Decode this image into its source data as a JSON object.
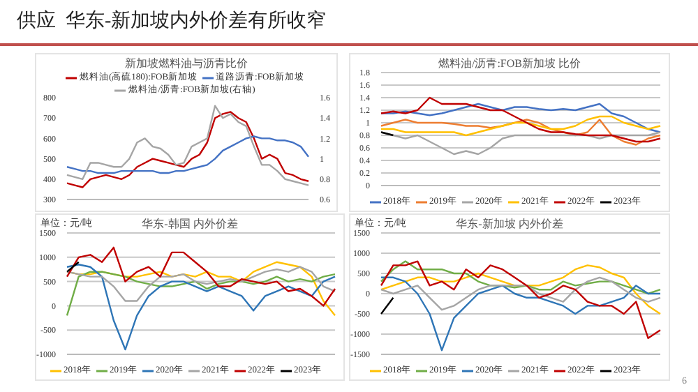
{
  "chart_data": [
    {
      "type": "line",
      "title": "新加坡燃料油与沥青比价",
      "annotations": [
        "供应  华东-新加坡内外价差有所收窄"
      ],
      "legend": "top",
      "categories": [
        null,
        null,
        null,
        null,
        null,
        null,
        null,
        null,
        null,
        null,
        null,
        null,
        null,
        null,
        null,
        null,
        null,
        null,
        null,
        null,
        null,
        null,
        null,
        null,
        null,
        null,
        null,
        null,
        null,
        null,
        null,
        null
      ],
      "ylim": [
        300,
        800
      ],
      "yticks": [
        300,
        400,
        500,
        600,
        700,
        800
      ],
      "y2lim": [
        0.6,
        1.6
      ],
      "y2ticks": [
        0.6,
        0.8,
        1.0,
        1.2,
        1.4,
        1.6
      ],
      "series": [
        {
          "name": "燃料油(高硫180):FOB新加坡",
          "color": "#c00000",
          "values": [
            380,
            370,
            360,
            400,
            410,
            420,
            410,
            400,
            420,
            460,
            480,
            500,
            490,
            480,
            470,
            460,
            500,
            520,
            580,
            700,
            720,
            730,
            700,
            680,
            600,
            500,
            520,
            500,
            430,
            420,
            400,
            390
          ]
        },
        {
          "name": "道路沥青:FOB新加坡",
          "color": "#4472c4",
          "values": [
            460,
            450,
            440,
            440,
            430,
            430,
            430,
            440,
            440,
            440,
            440,
            440,
            430,
            430,
            440,
            440,
            450,
            460,
            470,
            500,
            540,
            560,
            580,
            600,
            610,
            600,
            600,
            590,
            590,
            580,
            560,
            510
          ]
        },
        {
          "name": "燃料油/沥青:FOB新加坡(右轴)",
          "color": "#a5a5a5",
          "axis": "y2",
          "values": [
            0.84,
            0.82,
            0.8,
            0.96,
            0.96,
            0.94,
            0.92,
            0.92,
            1.0,
            1.16,
            1.2,
            1.12,
            1.1,
            1.04,
            0.94,
            0.96,
            1.12,
            1.16,
            1.2,
            1.52,
            1.4,
            1.44,
            1.36,
            1.32,
            1.12,
            0.94,
            0.94,
            0.88,
            0.8,
            0.78,
            0.76,
            0.74
          ]
        }
      ]
    },
    {
      "type": "line",
      "title": "燃料油/沥青:FOB新加坡  比价",
      "legend": "bottom",
      "grid": "y",
      "categories": [
        null,
        null,
        null,
        null,
        null,
        null,
        null,
        null,
        null,
        null,
        null,
        null,
        null,
        null,
        null,
        null,
        null,
        null,
        null,
        null,
        null,
        null,
        null,
        null
      ],
      "ylim": [
        0,
        1.8
      ],
      "yticks": [
        0,
        0.2,
        0.4,
        0.6,
        0.8,
        1,
        1.2,
        1.4,
        1.6,
        1.8
      ],
      "series": [
        {
          "name": "2018年",
          "color": "#4472c4",
          "values": [
            1.15,
            1.15,
            1.18,
            1.15,
            1.12,
            1.15,
            1.2,
            1.25,
            1.3,
            1.25,
            1.2,
            1.25,
            1.25,
            1.22,
            1.2,
            1.22,
            1.2,
            1.25,
            1.3,
            1.15,
            1.1,
            1.0,
            0.9,
            0.85
          ]
        },
        {
          "name": "2019年",
          "color": "#ed7d31",
          "values": [
            0.95,
            1.0,
            1.05,
            1.0,
            1.0,
            1.0,
            0.98,
            0.95,
            0.95,
            0.92,
            0.95,
            1.0,
            1.05,
            1.0,
            0.9,
            0.85,
            0.8,
            0.85,
            1.05,
            0.8,
            0.7,
            0.65,
            0.75,
            0.8
          ]
        },
        {
          "name": "2020年",
          "color": "#a5a5a5",
          "values": [
            0.85,
            0.8,
            0.75,
            0.8,
            0.7,
            0.6,
            0.5,
            0.55,
            0.5,
            0.6,
            0.75,
            0.8,
            0.8,
            0.8,
            0.8,
            0.8,
            0.8,
            0.8,
            0.75,
            0.8,
            0.8,
            0.8,
            0.8,
            0.85
          ]
        },
        {
          "name": "2021年",
          "color": "#ffc000",
          "values": [
            0.9,
            0.9,
            0.85,
            0.85,
            0.85,
            0.85,
            0.85,
            0.8,
            0.85,
            0.9,
            0.95,
            1.0,
            1.0,
            0.95,
            0.9,
            0.9,
            0.95,
            1.05,
            1.1,
            1.1,
            1.0,
            0.95,
            0.9,
            0.95
          ]
        },
        {
          "name": "2022年",
          "color": "#c00000",
          "values": [
            1.15,
            1.18,
            1.15,
            1.2,
            1.4,
            1.3,
            1.3,
            1.3,
            1.25,
            1.2,
            1.2,
            1.1,
            1.0,
            0.9,
            0.85,
            0.85,
            0.82,
            0.8,
            0.8,
            0.8,
            0.75,
            0.7,
            0.7,
            0.75
          ]
        },
        {
          "name": "2023年",
          "color": "#000000",
          "values": [
            0.85,
            0.8,
            null,
            null,
            null,
            null,
            null,
            null,
            null,
            null,
            null,
            null,
            null,
            null,
            null,
            null,
            null,
            null,
            null,
            null,
            null,
            null,
            null,
            null
          ]
        }
      ]
    },
    {
      "type": "line",
      "title": "华东-韩国  内外价差",
      "ylabel": "单位：元/吨",
      "legend": "bottom",
      "grid": "y",
      "categories": [
        null,
        null,
        null,
        null,
        null,
        null,
        null,
        null,
        null,
        null,
        null,
        null,
        null,
        null,
        null,
        null,
        null,
        null,
        null,
        null,
        null,
        null,
        null,
        null
      ],
      "ylim": [
        -1000,
        1500
      ],
      "yticks": [
        -1000,
        -500,
        0,
        500,
        1000,
        1500
      ],
      "series": [
        {
          "name": "2018年",
          "color": "#ffc000",
          "values": [
            700,
            650,
            650,
            700,
            650,
            600,
            600,
            650,
            700,
            600,
            650,
            600,
            700,
            600,
            600,
            500,
            700,
            800,
            900,
            850,
            800,
            600,
            100,
            -200
          ]
        },
        {
          "name": "2019年",
          "color": "#70ad47",
          "values": [
            -200,
            600,
            700,
            700,
            650,
            600,
            500,
            450,
            400,
            400,
            450,
            500,
            350,
            450,
            500,
            500,
            450,
            500,
            600,
            500,
            550,
            500,
            600,
            650
          ]
        },
        {
          "name": "2020年",
          "color": "#2e75b6",
          "values": [
            800,
            850,
            800,
            600,
            -300,
            -900,
            -200,
            200,
            400,
            500,
            500,
            400,
            300,
            400,
            300,
            200,
            -100,
            200,
            300,
            400,
            300,
            200,
            500,
            600
          ]
        },
        {
          "name": "2021年",
          "color": "#a5a5a5",
          "values": [
            700,
            650,
            600,
            600,
            400,
            100,
            100,
            400,
            600,
            600,
            650,
            500,
            450,
            500,
            550,
            500,
            600,
            700,
            750,
            700,
            800,
            700,
            400,
            300
          ]
        },
        {
          "name": "2022年",
          "color": "#c00000",
          "values": [
            600,
            1000,
            1050,
            900,
            1200,
            500,
            700,
            800,
            600,
            1100,
            1100,
            900,
            700,
            400,
            400,
            550,
            500,
            450,
            500,
            300,
            350,
            200,
            0,
            350
          ]
        },
        {
          "name": "2023年",
          "color": "#000000",
          "values": [
            700,
            900,
            null,
            null,
            null,
            null,
            null,
            null,
            null,
            null,
            null,
            null,
            null,
            null,
            null,
            null,
            null,
            null,
            null,
            null,
            null,
            null,
            null,
            null
          ]
        }
      ]
    },
    {
      "type": "line",
      "title": "华东-新加坡  内外价差",
      "ylabel": "单位：元/吨",
      "legend": "bottom",
      "grid": "y",
      "annotations": [
        "6"
      ],
      "categories": [
        null,
        null,
        null,
        null,
        null,
        null,
        null,
        null,
        null,
        null,
        null,
        null,
        null,
        null,
        null,
        null,
        null,
        null,
        null,
        null,
        null,
        null,
        null,
        null
      ],
      "ylim": [
        -1500,
        1500
      ],
      "yticks": [
        -1500,
        -1000,
        -500,
        0,
        500,
        1000,
        1500
      ],
      "series": [
        {
          "name": "2018年",
          "color": "#ffc000",
          "values": [
            100,
            200,
            300,
            400,
            400,
            300,
            300,
            400,
            500,
            400,
            300,
            200,
            200,
            200,
            300,
            400,
            600,
            700,
            650,
            500,
            400,
            0,
            -300,
            -500
          ]
        },
        {
          "name": "2019年",
          "color": "#70ad47",
          "values": [
            300,
            600,
            800,
            600,
            600,
            600,
            500,
            500,
            300,
            200,
            200,
            150,
            200,
            100,
            100,
            300,
            200,
            250,
            300,
            300,
            200,
            100,
            0,
            100
          ]
        },
        {
          "name": "2020年",
          "color": "#2e75b6",
          "values": [
            400,
            400,
            300,
            0,
            -500,
            -1400,
            -600,
            -300,
            0,
            100,
            200,
            0,
            -100,
            -100,
            -200,
            -300,
            -500,
            -300,
            -300,
            -200,
            -100,
            200,
            0,
            0
          ]
        },
        {
          "name": "2021年",
          "color": "#a5a5a5",
          "values": [
            100,
            0,
            100,
            200,
            -100,
            -400,
            -300,
            -100,
            100,
            200,
            200,
            200,
            200,
            0,
            -100,
            -200,
            100,
            300,
            400,
            300,
            100,
            -100,
            -200,
            -100
          ]
        },
        {
          "name": "2022年",
          "color": "#c00000",
          "values": [
            200,
            700,
            700,
            800,
            200,
            300,
            100,
            600,
            400,
            700,
            600,
            400,
            200,
            -100,
            0,
            200,
            100,
            -200,
            -300,
            -300,
            -500,
            -200,
            -1100,
            -900
          ]
        },
        {
          "name": "2023年",
          "color": "#000000",
          "values": [
            -500,
            -100,
            null,
            null,
            null,
            null,
            null,
            null,
            null,
            null,
            null,
            null,
            null,
            null,
            null,
            null,
            null,
            null,
            null,
            null,
            null,
            null,
            null,
            null
          ]
        }
      ]
    }
  ]
}
